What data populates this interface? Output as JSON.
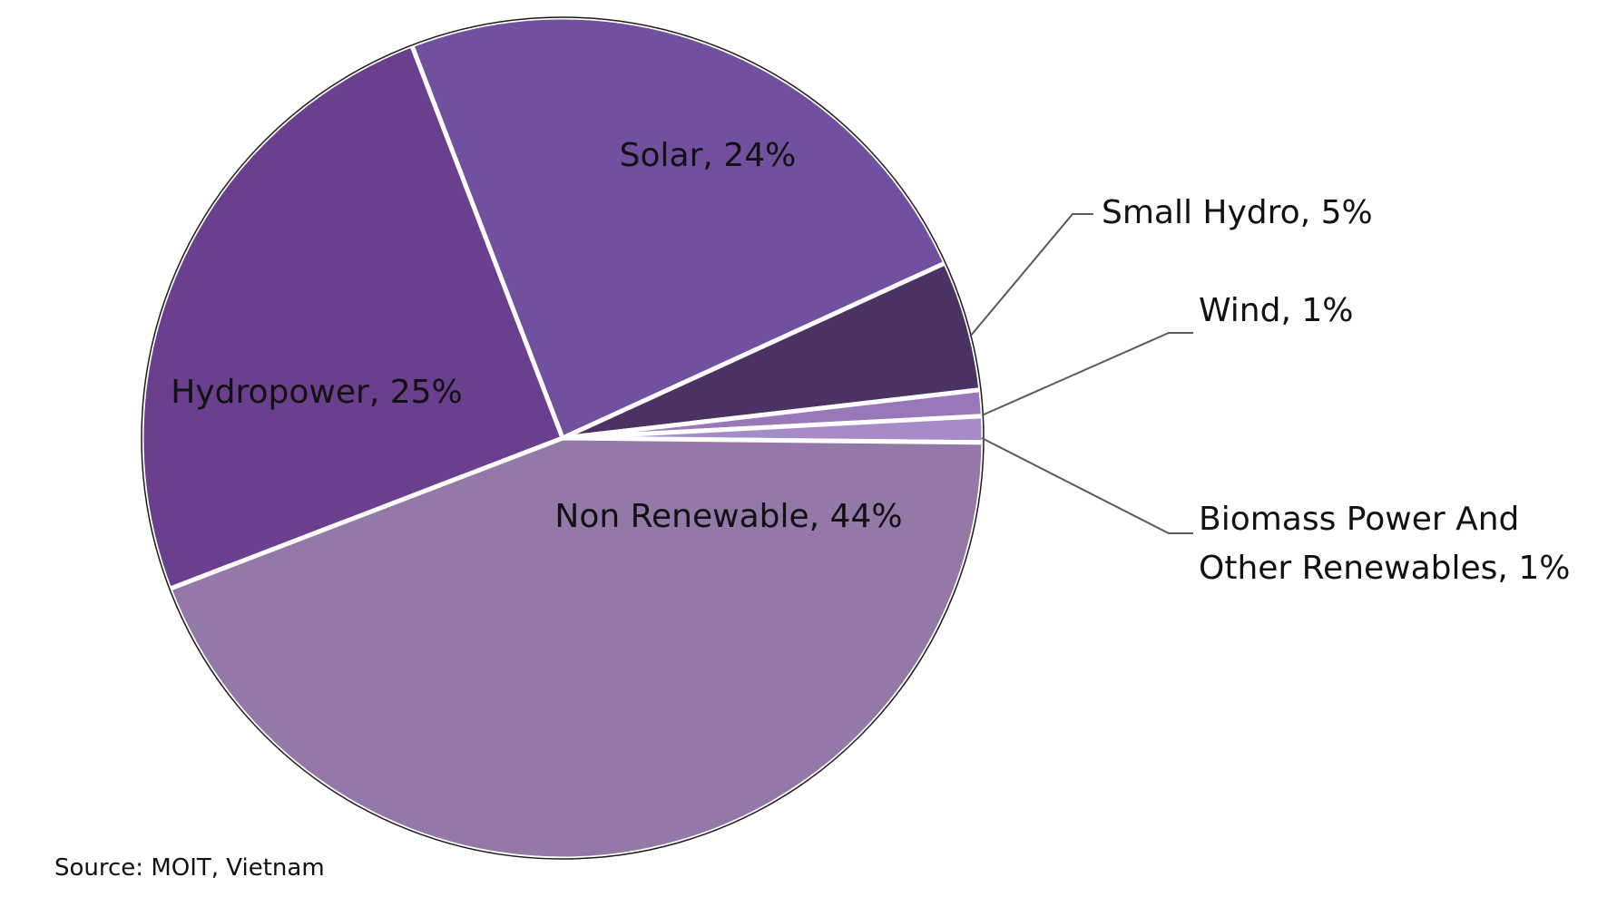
{
  "chart_data": {
    "type": "pie",
    "slices": [
      {
        "label": "Solar, 24%",
        "value": 24,
        "color": "#7250A0"
      },
      {
        "label": "Small Hydro, 5%",
        "value": 5,
        "color": "#4A3262"
      },
      {
        "label": "Wind, 1%",
        "value": 1,
        "color": "#9878B8"
      },
      {
        "label": "Biomass Power And",
        "label_line2": "Other Renewables, 1%",
        "value": 1,
        "color": "#A58CC8"
      },
      {
        "label": "Non Renewable, 44%",
        "value": 44,
        "color": "#9479A8"
      },
      {
        "label": "Hydropower, 25%",
        "value": 25,
        "color": "#693F8E"
      }
    ]
  },
  "source": "Source: MOIT, Vietnam"
}
